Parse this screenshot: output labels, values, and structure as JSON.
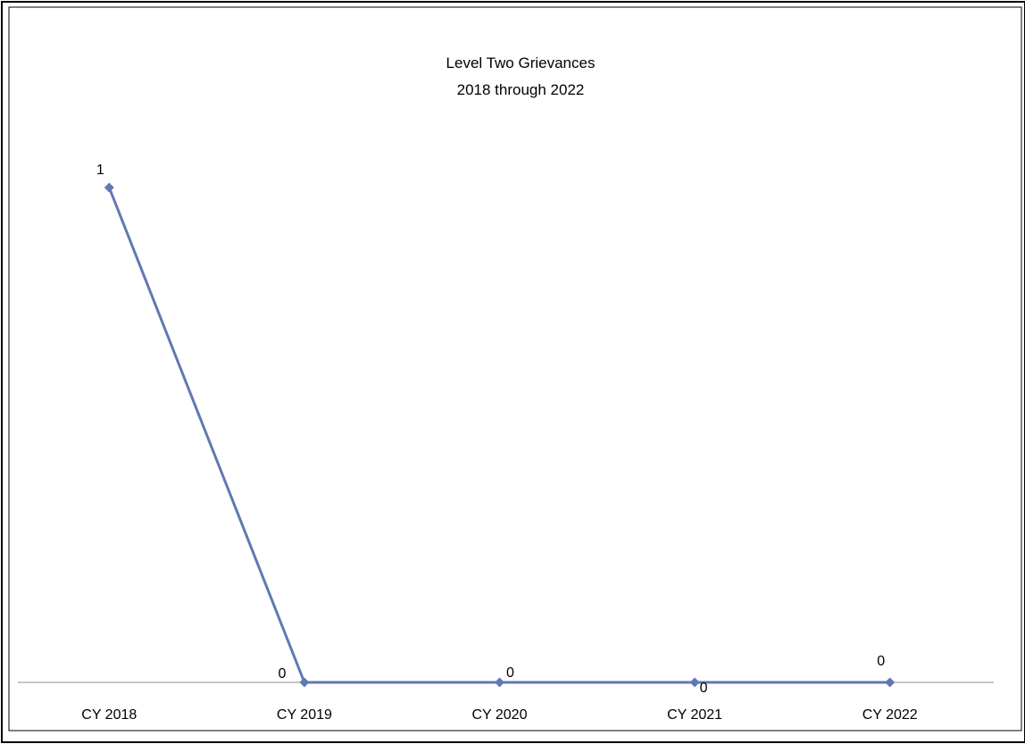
{
  "chart_data": {
    "type": "line",
    "title_lines": [
      "Level Two Grievances",
      "2018 through 2022"
    ],
    "xlabel": "",
    "ylabel": "",
    "categories": [
      "CY 2018",
      "CY 2019",
      "CY 2020",
      "CY 2021",
      "CY 2022"
    ],
    "series": [
      {
        "values": [
          1,
          0,
          0,
          0,
          0
        ],
        "color": "#6179b2"
      }
    ],
    "ylim": [
      0,
      1.2
    ],
    "grid": false,
    "legend": "none",
    "data_labels": true
  }
}
